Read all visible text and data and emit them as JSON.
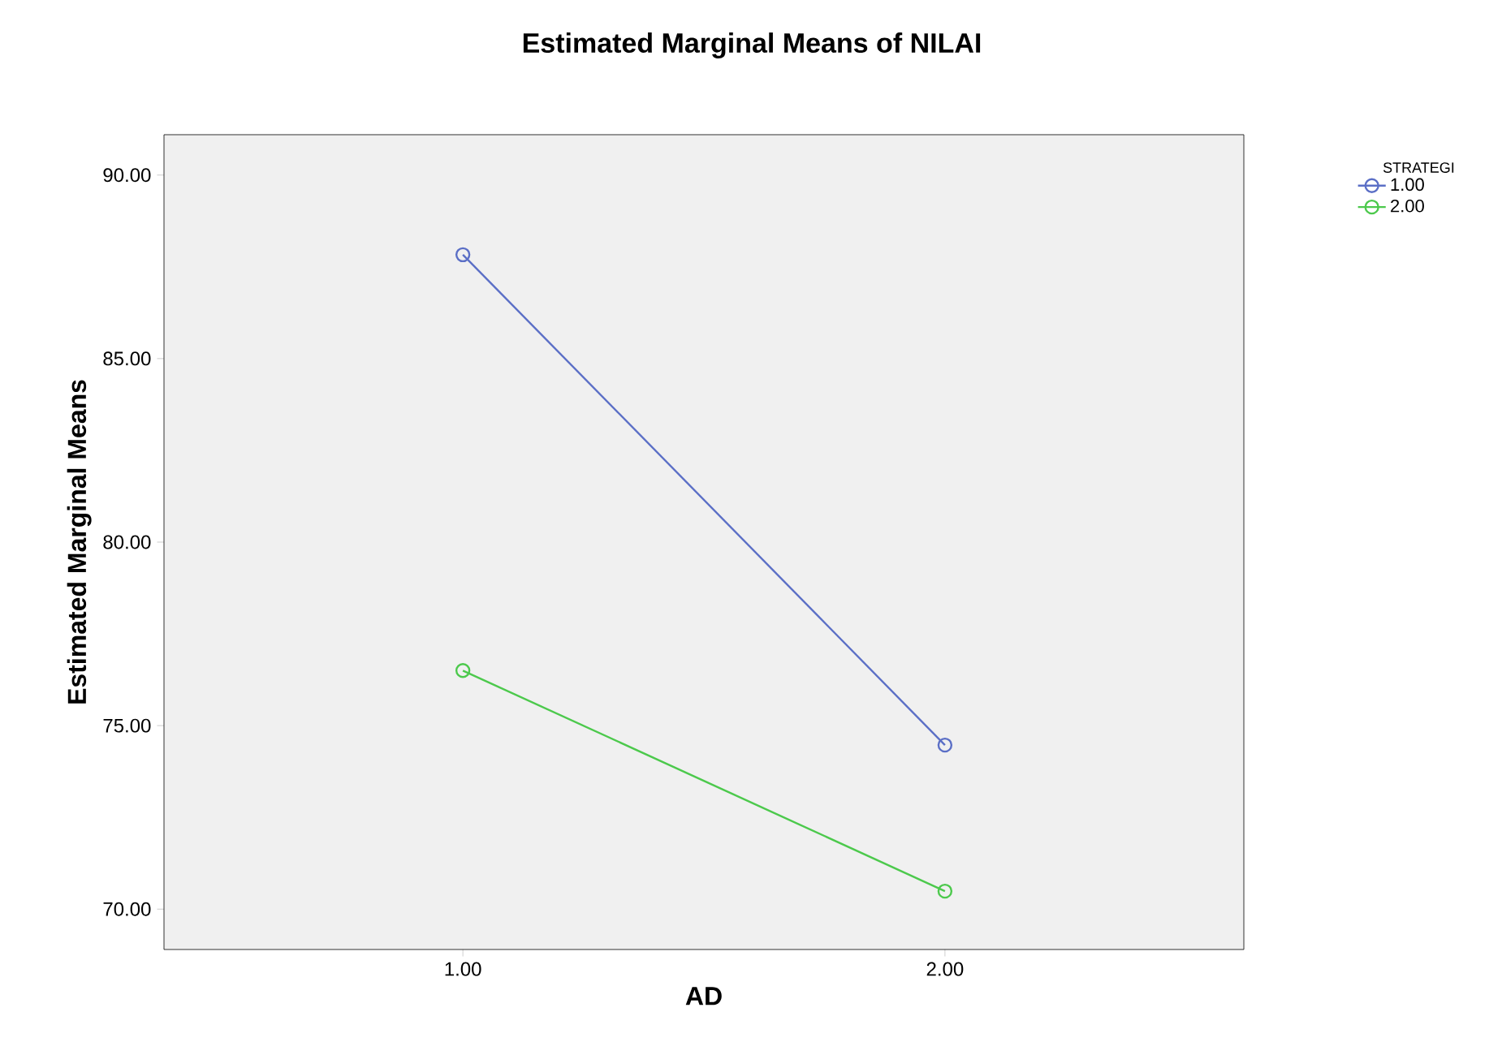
{
  "chart_data": {
    "type": "line",
    "title": "Estimated Marginal Means of NILAI",
    "xlabel": "AD",
    "ylabel": "Estimated Marginal Means",
    "legend_title": "STRATEGI",
    "categories": [
      "1.00",
      "2.00"
    ],
    "series": [
      {
        "name": "1.00",
        "color": "#5b6fc6",
        "values": [
          87.83,
          74.47
        ]
      },
      {
        "name": "2.00",
        "color": "#4cc94c",
        "values": [
          76.5,
          70.49
        ]
      }
    ],
    "ylim": [
      68.9,
      91.1
    ],
    "yticks": [
      {
        "value": 70,
        "label": "70.00"
      },
      {
        "value": 75,
        "label": "75.00"
      },
      {
        "value": 80,
        "label": "80.00"
      },
      {
        "value": 85,
        "label": "85.00"
      },
      {
        "value": 90,
        "label": "90.00"
      }
    ],
    "grid": false,
    "legend": "top right",
    "marker": "circle",
    "line_style": "solid"
  }
}
